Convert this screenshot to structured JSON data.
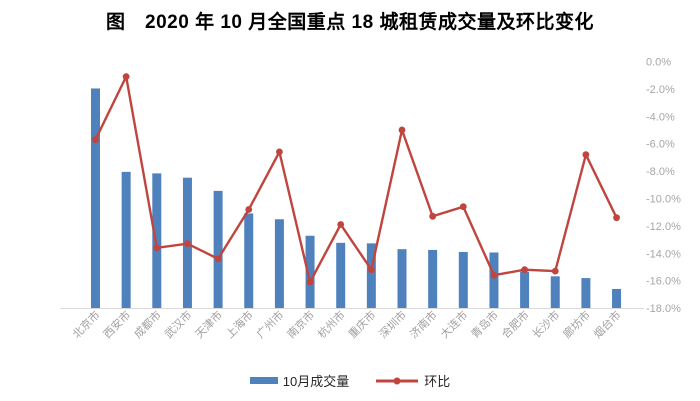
{
  "figure": {
    "title": "图　2020 年 10 月全国重点 18 城租赁成交量及环比变化"
  },
  "legend": {
    "bar_label": "10月成交量",
    "line_label": "环比"
  },
  "colors": {
    "bar": "#4F81BD",
    "line": "#C0453E",
    "axis_text": "#A6A6A6",
    "category_text": "#A0A0A0",
    "axis_line": "#D9D9D9",
    "legend_text": "#262626",
    "title_text": "#000000"
  },
  "chart_data": {
    "type": "bar",
    "subtype": "combo bar + line, dual axis",
    "title": "图　2020 年 10 月全国重点 18 城租赁成交量及环比变化",
    "categories": [
      "北京市",
      "西安市",
      "成都市",
      "武汉市",
      "天津市",
      "上海市",
      "广州市",
      "南京市",
      "杭州市",
      "重庆市",
      "深圳市",
      "济南市",
      "大连市",
      "青岛市",
      "合肥市",
      "长沙市",
      "廊坊市",
      "烟台市"
    ],
    "series": [
      {
        "name": "10月成交量",
        "type": "bar",
        "axis": "left",
        "unit": "relative bar height, % of plot height (left volume axis is unlabeled in source)",
        "values": [
          86.8,
          53.9,
          53.3,
          51.6,
          46.4,
          37.5,
          35.2,
          28.7,
          25.9,
          25.7,
          23.4,
          23.1,
          22.3,
          22.1,
          14.5,
          12.7,
          12.0,
          7.7
        ]
      },
      {
        "name": "环比",
        "type": "line",
        "axis": "right",
        "unit": "%",
        "values": [
          -5.7,
          -1.1,
          -13.6,
          -13.3,
          -14.4,
          -10.8,
          -6.6,
          -16.1,
          -11.9,
          -15.2,
          -5.0,
          -11.3,
          -10.6,
          -15.6,
          -15.2,
          -15.3,
          -6.8,
          -11.4
        ]
      }
    ],
    "right_axis": {
      "tick_labels": [
        "0.0%",
        "-2.0%",
        "-4.0%",
        "-6.0%",
        "-8.0%",
        "-10.0%",
        "-12.0%",
        "-14.0%",
        "-16.0%",
        "-18.0%"
      ],
      "max": 0,
      "min": -18,
      "step": -2
    },
    "left_axis": {
      "tick_labels": [],
      "note": "no visible labels"
    },
    "grid": "off",
    "legend_position": "bottom",
    "xlabel": "",
    "ylabel": ""
  }
}
